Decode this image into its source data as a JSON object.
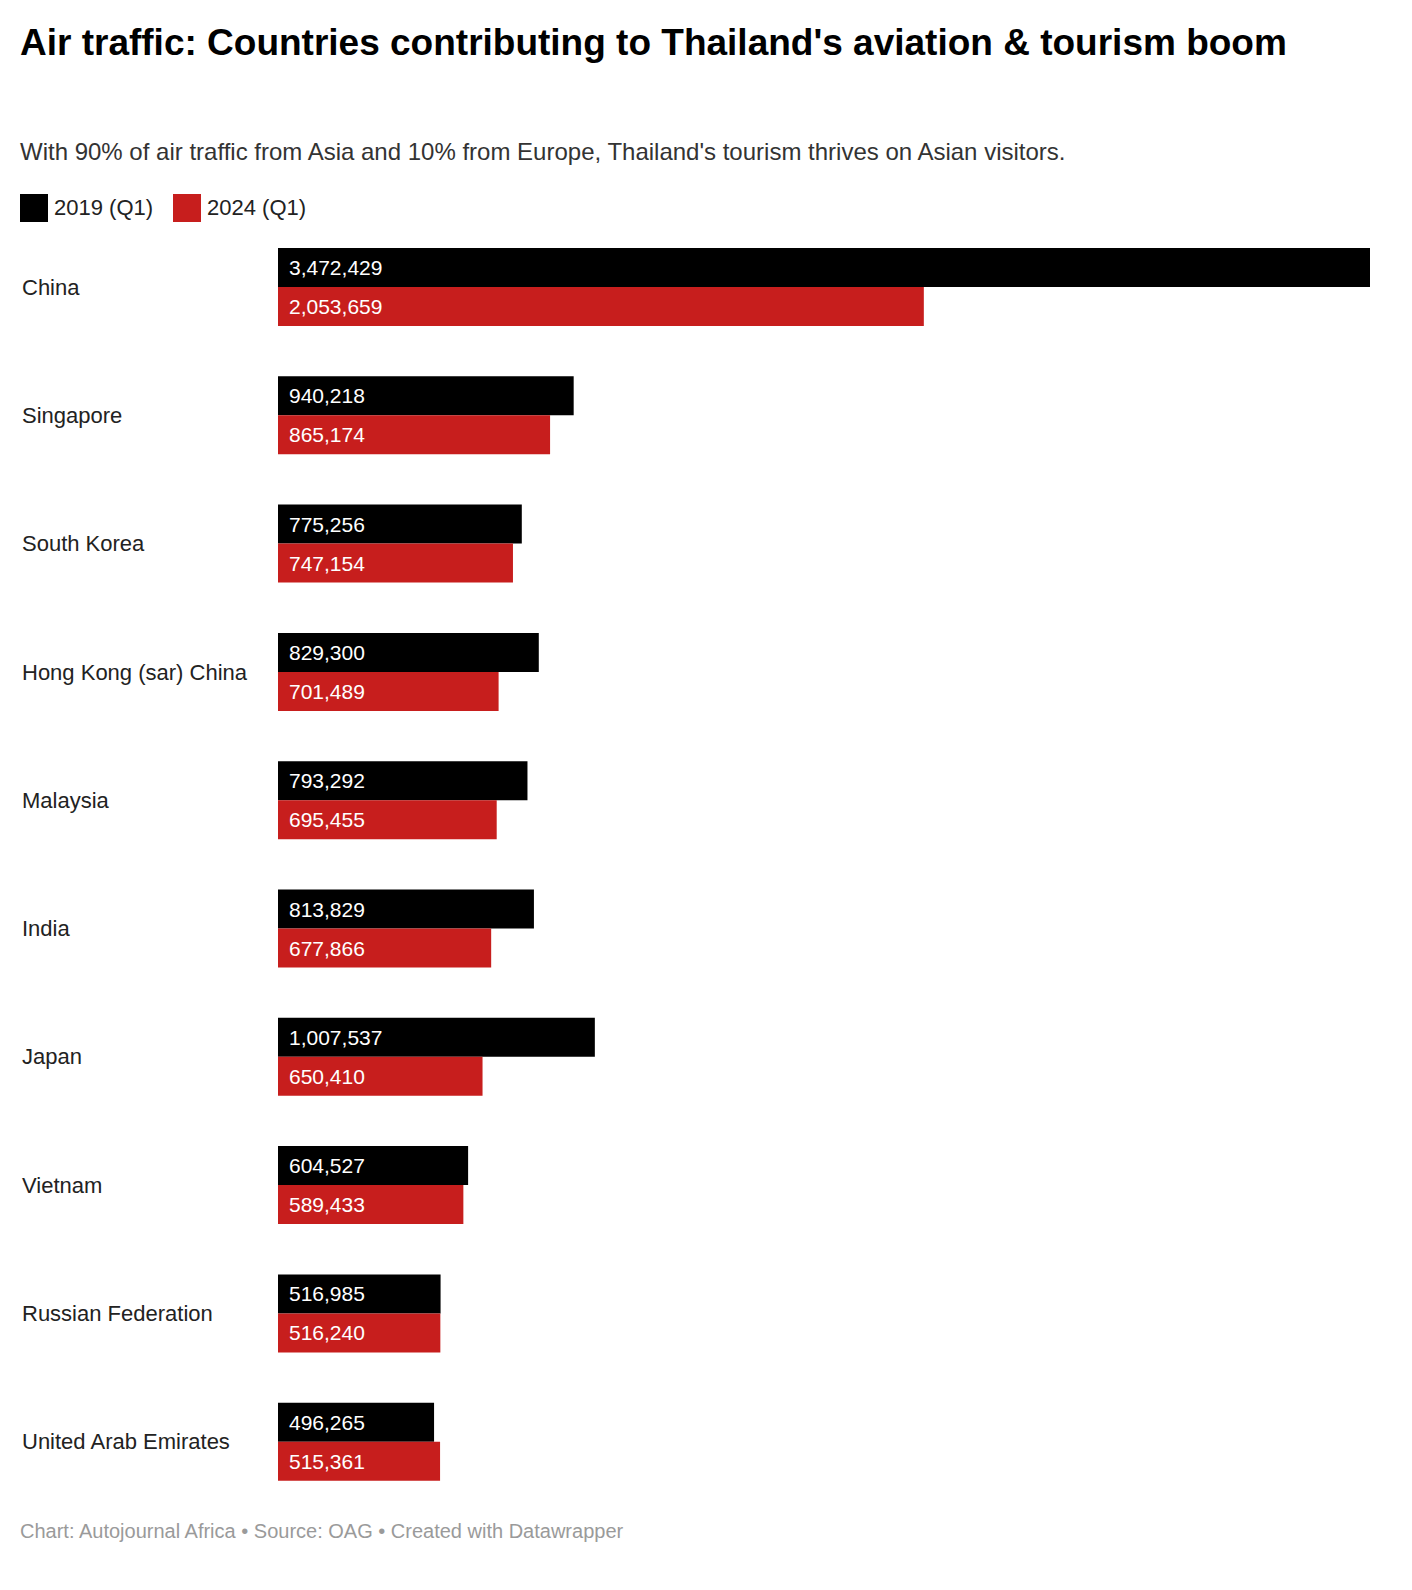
{
  "chart_data": {
    "type": "bar",
    "orientation": "horizontal",
    "title": "Air traffic: Countries contributing to Thailand's aviation & tourism boom",
    "subtitle": "With 90% of air traffic from Asia and 10% from Europe, Thailand's tourism thrives on Asian visitors.",
    "footer": "Chart: Autojournal Africa • Source: OAG • Created with Datawrapper",
    "categories": [
      "China",
      "Singapore",
      "South Korea",
      "Hong Kong (sar) China",
      "Malaysia",
      "India",
      "Japan",
      "Vietnam",
      "Russian Federation",
      "United Arab Emirates"
    ],
    "series": [
      {
        "name": "2019 (Q1)",
        "color": "#000000",
        "values": [
          3472429,
          940218,
          775256,
          829300,
          793292,
          813829,
          1007537,
          604527,
          516985,
          496265
        ],
        "value_labels": [
          "3,472,429",
          "940,218",
          "775,256",
          "829,300",
          "793,292",
          "813,829",
          "1,007,537",
          "604,527",
          "516,985",
          "496,265"
        ]
      },
      {
        "name": "2024 (Q1)",
        "color": "#c71e1d",
        "values": [
          2053659,
          865174,
          747154,
          701489,
          695455,
          677866,
          650410,
          589433,
          516240,
          515361
        ],
        "value_labels": [
          "2,053,659",
          "865,174",
          "747,154",
          "701,489",
          "695,455",
          "677,866",
          "650,410",
          "589,433",
          "516,240",
          "515,361"
        ]
      }
    ],
    "xlim": [
      0,
      3472429
    ],
    "data_labels": true,
    "tick_labels": "y",
    "grid": false,
    "legend": "top-left"
  }
}
